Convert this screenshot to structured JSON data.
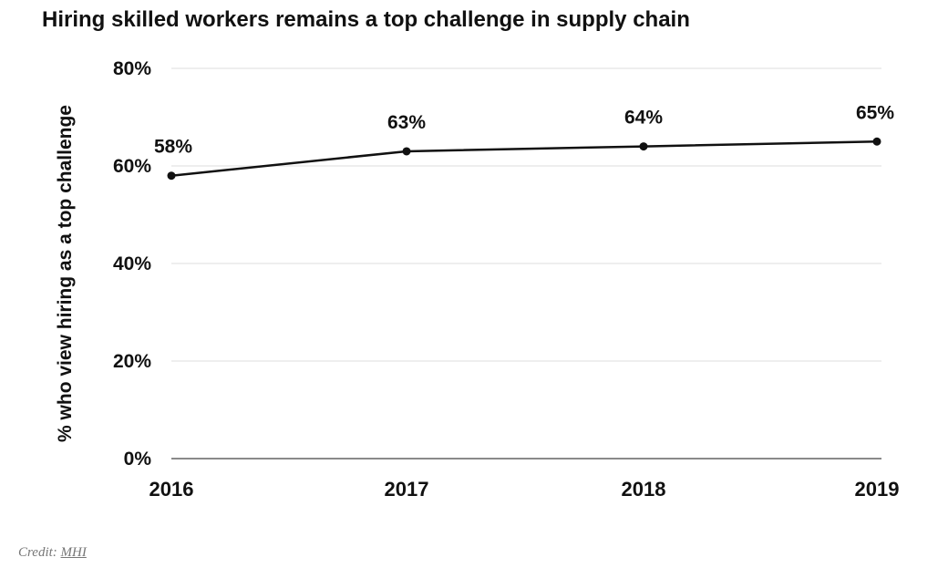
{
  "credit": {
    "label": "Credit:",
    "source": "MHI"
  },
  "chart_data": {
    "type": "line",
    "title": "Hiring skilled workers remains a top challenge in supply chain",
    "xlabel": "",
    "ylabel": "% who view hiring as a top challenge",
    "categories": [
      "2016",
      "2017",
      "2018",
      "2019"
    ],
    "series": [
      {
        "values": [
          58,
          63,
          64,
          65
        ],
        "labels": [
          "58%",
          "63%",
          "64%",
          "65%"
        ]
      }
    ],
    "ylim": [
      0,
      80
    ],
    "yticks": [
      0,
      20,
      40,
      60,
      80
    ],
    "ytick_labels": [
      "0%",
      "20%",
      "40%",
      "60%",
      "80%"
    ],
    "grid": true,
    "legend": "none",
    "colors": {
      "line": "#111111",
      "grid": "#e4e4e4",
      "baseline": "#8a8a8a",
      "text": "#111111"
    }
  }
}
